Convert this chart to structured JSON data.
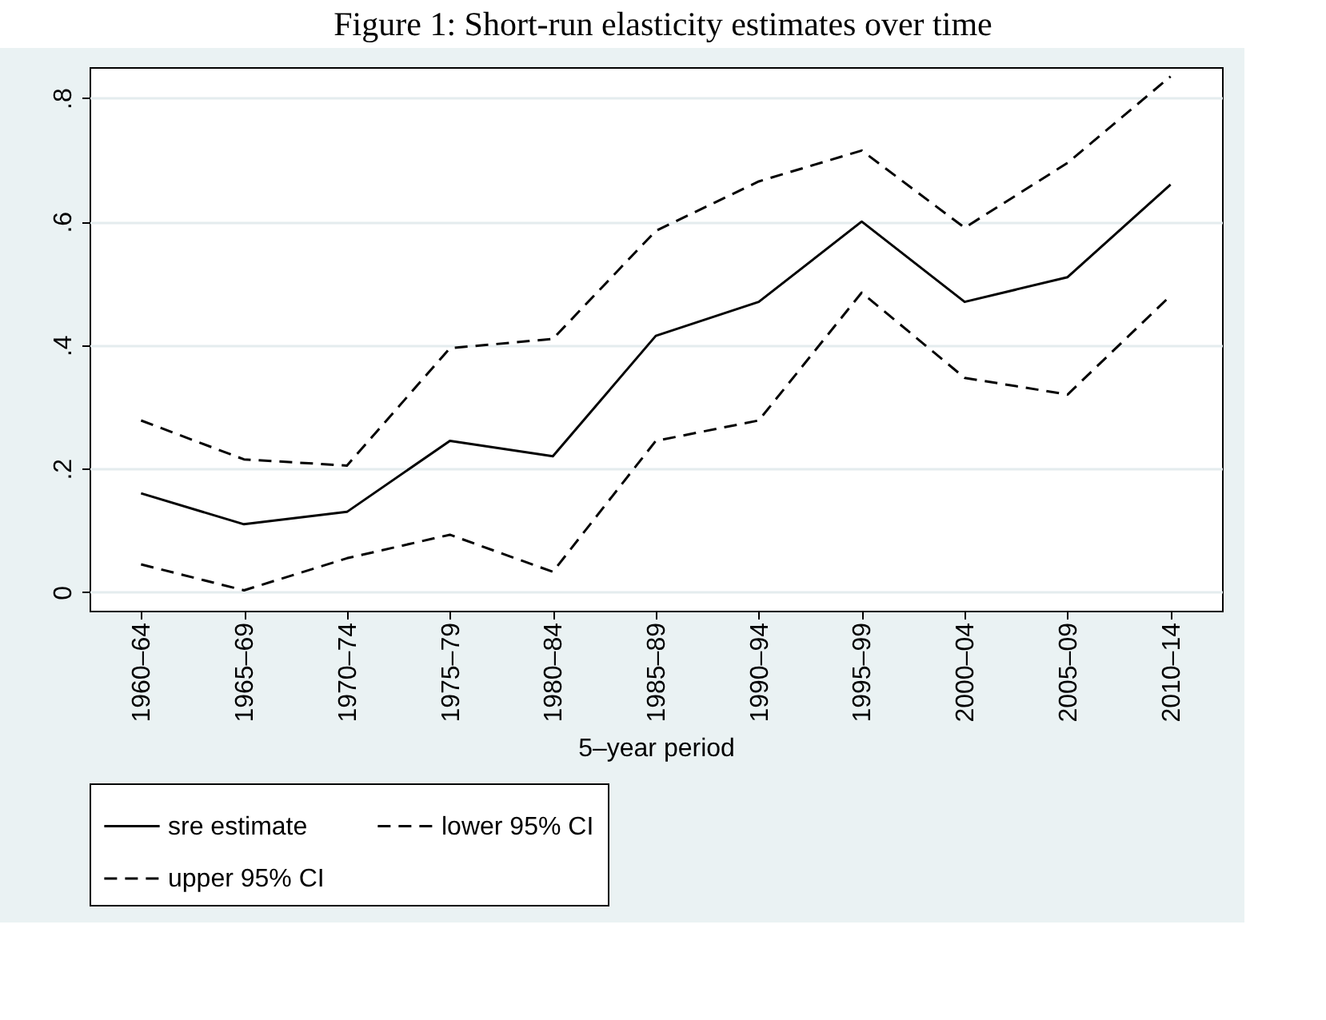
{
  "chart_data": {
    "type": "line",
    "title": "Figure 1: Short-run elasticity estimates over time",
    "xlabel": "5–year period",
    "categories": [
      "1960–64",
      "1965–69",
      "1970–74",
      "1975–79",
      "1980–84",
      "1985–89",
      "1990–94",
      "1995–99",
      "2000–04",
      "2005–09",
      "2010–14"
    ],
    "series": [
      {
        "name": "sre estimate",
        "color": "#000000",
        "line_style": "solid",
        "values": [
          0.16,
          0.11,
          0.13,
          0.245,
          0.22,
          0.415,
          0.47,
          0.6,
          0.47,
          0.51,
          0.66
        ]
      },
      {
        "name": "lower 95% CI",
        "color": "#000000",
        "line_style": "dashed",
        "values": [
          0.045,
          0.003,
          0.055,
          0.093,
          0.033,
          0.245,
          0.278,
          0.485,
          0.347,
          0.32,
          0.48
        ]
      },
      {
        "name": "upper 95% CI",
        "color": "#000000",
        "line_style": "dashed",
        "values": [
          0.278,
          0.215,
          0.205,
          0.395,
          0.41,
          0.585,
          0.665,
          0.715,
          0.59,
          0.695,
          0.835
        ]
      }
    ],
    "ylim": [
      -0.03,
      0.85
    ],
    "yticks": [
      {
        "value": 0,
        "label": "0"
      },
      {
        "value": 0.2,
        "label": ".2"
      },
      {
        "value": 0.4,
        "label": ".4"
      },
      {
        "value": 0.6,
        "label": ".6"
      },
      {
        "value": 0.8,
        "label": ".8"
      }
    ],
    "grid": "y",
    "legend": "bottom",
    "marker": "none"
  }
}
